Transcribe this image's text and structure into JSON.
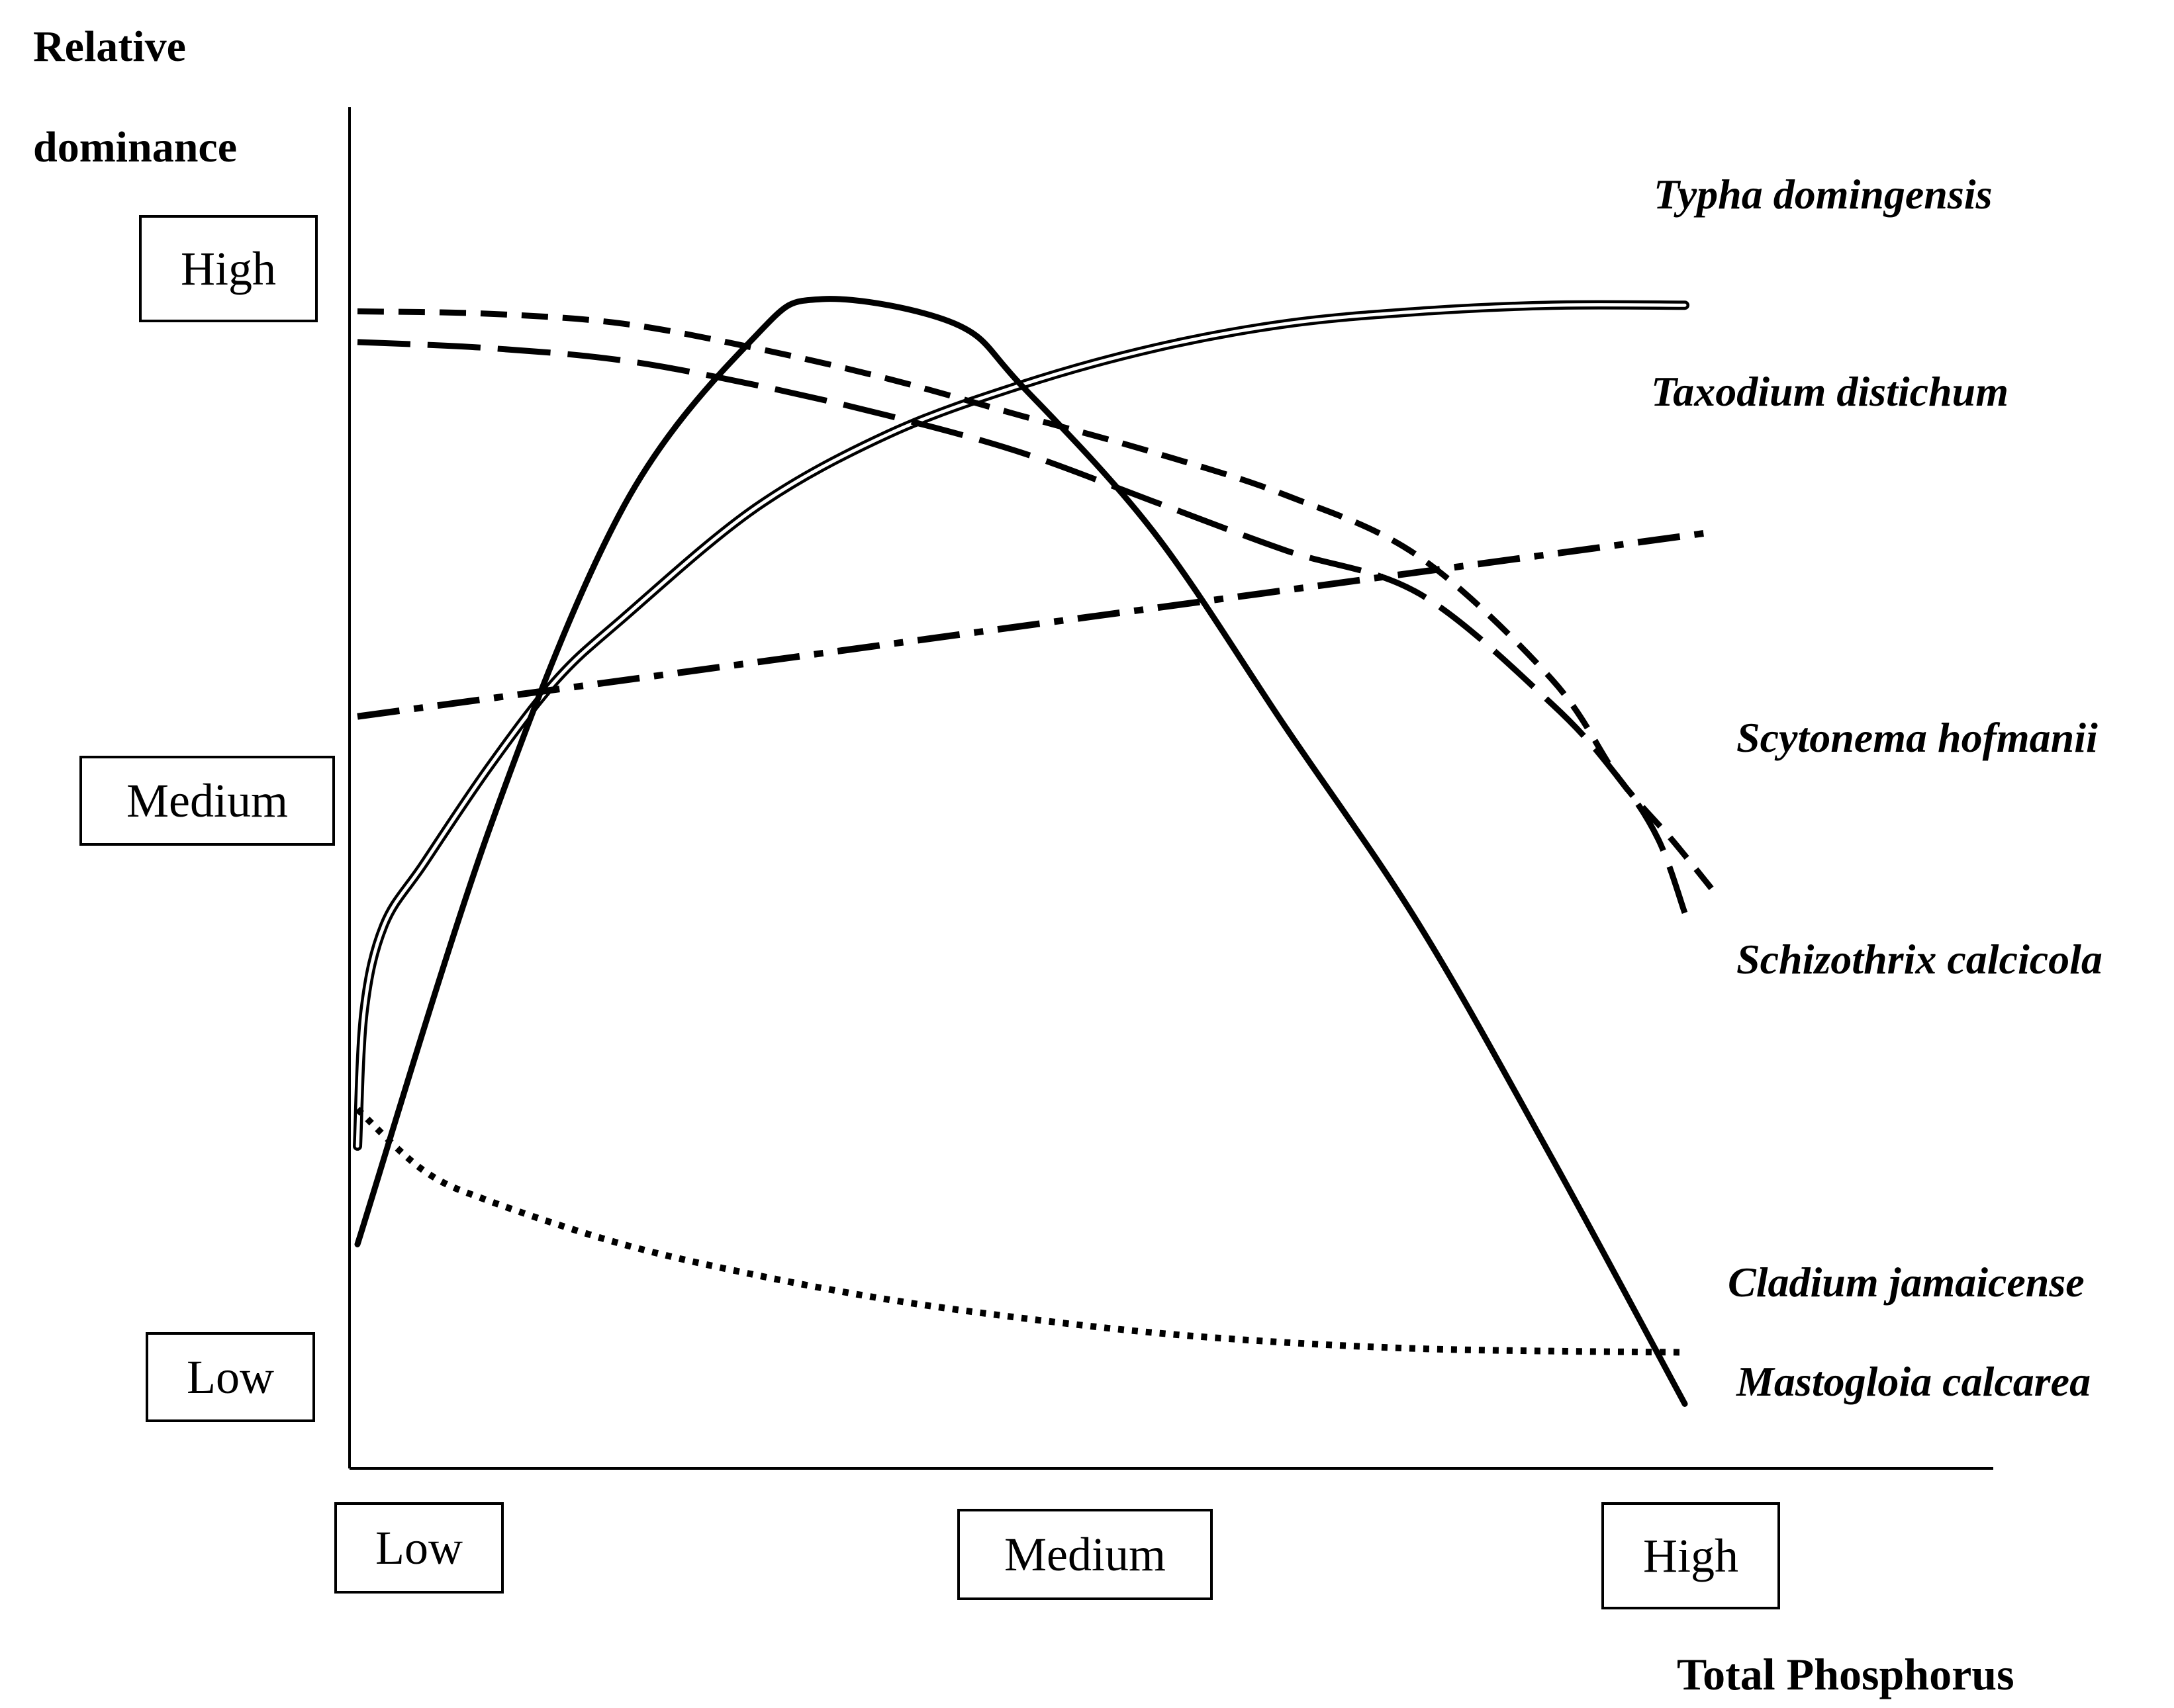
{
  "chart_data": {
    "type": "line",
    "ylabel_lines": [
      "Relative",
      "dominance"
    ],
    "xlabel": "Total Phosphorus",
    "y_ticks": [
      "High",
      "Medium",
      "Low"
    ],
    "x_ticks": [
      "Low",
      "Medium",
      "High"
    ],
    "xlim": [
      0,
      1
    ],
    "ylim": [
      0,
      1
    ],
    "grid": false,
    "legend": "direct labels at right end of each line",
    "series": [
      {
        "name": "Typha domingensis",
        "style": "double",
        "x": [
          0.0,
          0.005,
          0.02,
          0.05,
          0.1,
          0.15,
          0.2,
          0.3,
          0.4,
          0.5,
          0.6,
          0.7,
          0.8,
          0.9,
          1.0
        ],
        "y": [
          0.22,
          0.33,
          0.4,
          0.45,
          0.53,
          0.6,
          0.65,
          0.74,
          0.8,
          0.84,
          0.87,
          0.89,
          0.9,
          0.905,
          0.905
        ]
      },
      {
        "name": "Taxodium distichum",
        "style": "dash-dot",
        "x": [
          0.0,
          1.02
        ],
        "y": [
          0.57,
          0.72
        ]
      },
      {
        "name": "Scytonema hofmanii",
        "style": "short-dash",
        "x": [
          0.0,
          0.1,
          0.2,
          0.3,
          0.4,
          0.5,
          0.6,
          0.7,
          0.8,
          0.9,
          0.95,
          0.99,
          1.02
        ],
        "y": [
          0.9,
          0.898,
          0.89,
          0.87,
          0.845,
          0.815,
          0.785,
          0.75,
          0.7,
          0.6,
          0.52,
          0.47,
          0.43
        ]
      },
      {
        "name": "Schizothrix calcicola",
        "style": "long-dash",
        "x": [
          0.0,
          0.1,
          0.2,
          0.3,
          0.4,
          0.5,
          0.6,
          0.7,
          0.8,
          0.9,
          0.95,
          0.98,
          1.0
        ],
        "y": [
          0.875,
          0.87,
          0.86,
          0.84,
          0.815,
          0.785,
          0.745,
          0.705,
          0.67,
          0.58,
          0.52,
          0.47,
          0.41
        ]
      },
      {
        "name": "Cladium jamaicense",
        "style": "solid",
        "x": [
          0.0,
          0.1,
          0.2,
          0.3,
          0.35,
          0.45,
          0.5,
          0.6,
          0.7,
          0.8,
          0.9,
          1.0
        ],
        "y": [
          0.14,
          0.48,
          0.74,
          0.88,
          0.91,
          0.89,
          0.84,
          0.72,
          0.56,
          0.4,
          0.21,
          0.01
        ]
      },
      {
        "name": "Mastogloia calcarea",
        "style": "dotted",
        "x": [
          0.0,
          0.05,
          0.1,
          0.2,
          0.3,
          0.4,
          0.5,
          0.6,
          0.7,
          0.8,
          0.9,
          1.0
        ],
        "y": [
          0.25,
          0.2,
          0.175,
          0.14,
          0.115,
          0.095,
          0.08,
          0.068,
          0.06,
          0.055,
          0.053,
          0.052
        ]
      }
    ]
  }
}
